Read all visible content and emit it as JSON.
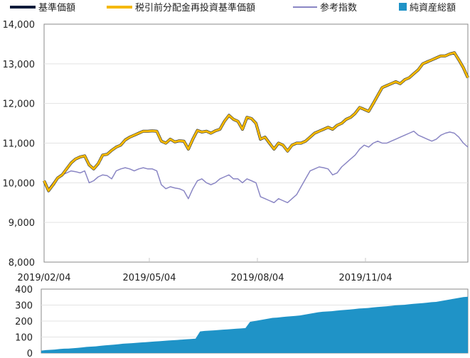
{
  "chart_data": [
    {
      "type": "line",
      "title": "",
      "xlabel": "",
      "ylabel": "",
      "ylim": [
        8000,
        14000
      ],
      "yticks": [
        "8,000",
        "9,000",
        "10,000",
        "11,000",
        "12,000",
        "13,000",
        "14,000"
      ],
      "yticks_values": [
        8000,
        9000,
        10000,
        11000,
        12000,
        13000,
        14000
      ],
      "x_tick_labels": [
        "2019/02/04",
        "2019/05/04",
        "2019/08/04",
        "2019/11/04"
      ],
      "grid": true,
      "legend_placement": "top",
      "legend": [
        {
          "label": "基準価額",
          "color": "#0b1a3a",
          "kind": "line"
        },
        {
          "label": "税引前分配金再投資基準価額",
          "color": "#f5b800",
          "kind": "line"
        },
        {
          "label": "参考指数",
          "color": "#8a86c4",
          "kind": "line"
        },
        {
          "label": "純資産総額",
          "color": "#1f93c7",
          "kind": "square"
        }
      ],
      "series": [
        {
          "name": "基準価額",
          "color": "#0b1a3a",
          "values": [
            10050,
            9800,
            9950,
            10120,
            10200,
            10350,
            10500,
            10600,
            10650,
            10680,
            10450,
            10350,
            10480,
            10700,
            10720,
            10820,
            10900,
            10950,
            11080,
            11150,
            11200,
            11250,
            11300,
            11300,
            11310,
            11300,
            11050,
            11000,
            11100,
            11030,
            11060,
            11050,
            10850,
            11100,
            11320,
            11280,
            11300,
            11250,
            11310,
            11350,
            11550,
            11700,
            11600,
            11550,
            11350,
            11650,
            11620,
            11500,
            11100,
            11150,
            11000,
            10850,
            11000,
            10950,
            10800,
            10950,
            11000,
            11000,
            11050,
            11150,
            11250,
            11300,
            11350,
            11400,
            11350,
            11450,
            11500,
            11600,
            11650,
            11750,
            11900,
            11850,
            11800,
            12000,
            12200,
            12400,
            12450,
            12500,
            12550,
            12500,
            12600,
            12650,
            12750,
            12850,
            13000,
            13050,
            13100,
            13150,
            13200,
            13200,
            13250,
            13280,
            13100,
            12900,
            12650
          ]
        },
        {
          "name": "税引前分配金再投資基準価額",
          "color": "#f5b800",
          "values": [
            10050,
            9800,
            9950,
            10120,
            10200,
            10350,
            10500,
            10600,
            10650,
            10680,
            10450,
            10350,
            10480,
            10700,
            10720,
            10820,
            10900,
            10950,
            11080,
            11150,
            11200,
            11250,
            11300,
            11300,
            11310,
            11300,
            11050,
            11000,
            11100,
            11030,
            11060,
            11050,
            10850,
            11100,
            11320,
            11280,
            11300,
            11250,
            11310,
            11350,
            11550,
            11700,
            11600,
            11550,
            11350,
            11650,
            11620,
            11500,
            11100,
            11150,
            11000,
            10850,
            11000,
            10950,
            10800,
            10950,
            11000,
            11000,
            11050,
            11150,
            11250,
            11300,
            11350,
            11400,
            11350,
            11450,
            11500,
            11600,
            11650,
            11750,
            11900,
            11850,
            11800,
            12000,
            12200,
            12400,
            12450,
            12500,
            12550,
            12500,
            12600,
            12650,
            12750,
            12850,
            13000,
            13050,
            13100,
            13150,
            13200,
            13200,
            13250,
            13280,
            13100,
            12900,
            12650
          ]
        },
        {
          "name": "参考指数",
          "color": "#8a86c4",
          "values": [
            10000,
            9850,
            10000,
            10150,
            10200,
            10250,
            10300,
            10280,
            10250,
            10300,
            10000,
            10050,
            10150,
            10200,
            10180,
            10100,
            10300,
            10350,
            10380,
            10350,
            10300,
            10350,
            10380,
            10350,
            10350,
            10300,
            9950,
            9850,
            9900,
            9870,
            9850,
            9800,
            9600,
            9850,
            10050,
            10100,
            10000,
            9950,
            10000,
            10100,
            10150,
            10200,
            10100,
            10100,
            10000,
            10100,
            10050,
            10000,
            9650,
            9600,
            9550,
            9500,
            9600,
            9550,
            9500,
            9600,
            9700,
            9900,
            10100,
            10300,
            10350,
            10400,
            10380,
            10350,
            10200,
            10250,
            10400,
            10500,
            10600,
            10700,
            10850,
            10950,
            10900,
            11000,
            11050,
            11000,
            11000,
            11050,
            11100,
            11150,
            11200,
            11250,
            11300,
            11200,
            11150,
            11100,
            11050,
            11100,
            11200,
            11250,
            11280,
            11250,
            11150,
            11000,
            10900
          ]
        }
      ]
    },
    {
      "type": "area",
      "title": "",
      "xlabel": "",
      "ylabel": "",
      "ylim": [
        0,
        400
      ],
      "yticks": [
        "0",
        "100",
        "200",
        "300",
        "400"
      ],
      "yticks_values": [
        0,
        100,
        200,
        300,
        400
      ],
      "grid": true,
      "series": [
        {
          "name": "純資産総額",
          "color": "#1f93c7",
          "values": [
            15,
            18,
            20,
            22,
            25,
            27,
            28,
            30,
            32,
            35,
            38,
            40,
            42,
            45,
            48,
            50,
            52,
            55,
            58,
            60,
            62,
            64,
            66,
            68,
            70,
            72,
            74,
            76,
            78,
            80,
            82,
            84,
            86,
            88,
            90,
            135,
            138,
            140,
            142,
            144,
            146,
            148,
            150,
            152,
            154,
            156,
            195,
            200,
            205,
            210,
            215,
            220,
            222,
            225,
            228,
            230,
            232,
            235,
            240,
            245,
            250,
            255,
            258,
            260,
            262,
            265,
            268,
            270,
            272,
            275,
            278,
            280,
            282,
            285,
            288,
            290,
            292,
            295,
            298,
            300,
            302,
            305,
            308,
            310,
            312,
            315,
            318,
            320,
            325,
            330,
            335,
            340,
            345,
            350,
            352
          ]
        }
      ]
    }
  ]
}
